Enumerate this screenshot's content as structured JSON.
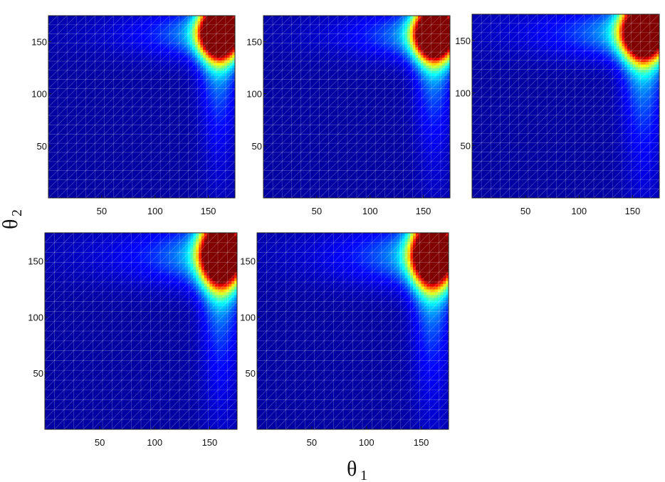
{
  "figure": {
    "xlabel": {
      "symbol": "θ",
      "subscript": "1"
    },
    "ylabel": {
      "symbol": "θ",
      "subscript": "2"
    }
  },
  "chart_data": [
    {
      "type": "heatmap",
      "panel": 1,
      "xlim": [
        0,
        175
      ],
      "ylim": [
        0,
        175
      ],
      "xticks": [
        50,
        100,
        150
      ],
      "yticks": [
        50,
        100,
        150
      ],
      "hotspot": {
        "x": 160,
        "y": 158,
        "spread_x": 12,
        "spread_y": 16,
        "tail_x": 45,
        "tail_y": 55
      }
    },
    {
      "type": "heatmap",
      "panel": 2,
      "xlim": [
        0,
        175
      ],
      "ylim": [
        0,
        175
      ],
      "xticks": [
        50,
        100,
        150
      ],
      "yticks": [
        50,
        100,
        150
      ],
      "hotspot": {
        "x": 160,
        "y": 157,
        "spread_x": 12,
        "spread_y": 16,
        "tail_x": 45,
        "tail_y": 55
      }
    },
    {
      "type": "heatmap",
      "panel": 3,
      "xlim": [
        0,
        175
      ],
      "ylim": [
        0,
        175
      ],
      "xticks": [
        50,
        100,
        150
      ],
      "yticks": [
        50,
        100,
        150
      ],
      "hotspot": {
        "x": 160,
        "y": 158,
        "spread_x": 13,
        "spread_y": 17,
        "tail_x": 55,
        "tail_y": 65
      }
    },
    {
      "type": "heatmap",
      "panel": 4,
      "xlim": [
        0,
        175
      ],
      "ylim": [
        0,
        175
      ],
      "xticks": [
        50,
        100,
        150
      ],
      "yticks": [
        50,
        100,
        150
      ],
      "hotspot": {
        "x": 160,
        "y": 155,
        "spread_x": 12,
        "spread_y": 18,
        "tail_x": 50,
        "tail_y": 60
      }
    },
    {
      "type": "heatmap",
      "panel": 5,
      "xlim": [
        0,
        175
      ],
      "ylim": [
        0,
        175
      ],
      "xticks": [
        50,
        100,
        150
      ],
      "yticks": [
        50,
        100,
        150
      ],
      "hotspot": {
        "x": 160,
        "y": 155,
        "spread_x": 12,
        "spread_y": 18,
        "tail_x": 50,
        "tail_y": 60
      }
    }
  ],
  "colormap": [
    "#00008f",
    "#0000ff",
    "#00ffff",
    "#ffff00",
    "#ff0000",
    "#800000"
  ]
}
